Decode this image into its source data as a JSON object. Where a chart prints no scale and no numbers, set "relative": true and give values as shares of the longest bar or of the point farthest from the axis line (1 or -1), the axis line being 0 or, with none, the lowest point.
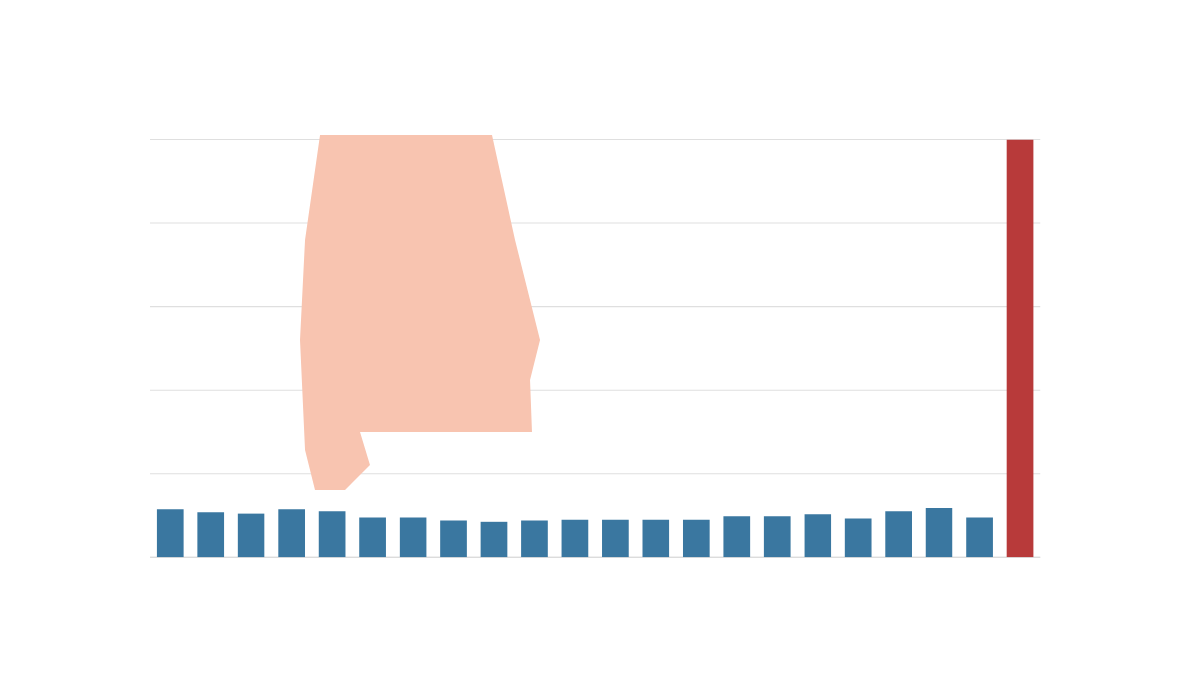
{
  "chart_data": {
    "type": "bar",
    "relative": true,
    "grid": "y",
    "categories": [
      null,
      null,
      null,
      null,
      null,
      null,
      null,
      null,
      null,
      null,
      null,
      null,
      null,
      null,
      null,
      null,
      null,
      null,
      null,
      null,
      null,
      null
    ],
    "values": [
      0.115,
      0.108,
      0.105,
      0.115,
      0.11,
      0.095,
      0.095,
      0.088,
      0.085,
      0.088,
      0.09,
      0.09,
      0.09,
      0.09,
      0.098,
      0.098,
      0.103,
      0.093,
      0.11,
      0.118,
      0.095,
      1
    ],
    "colors": [
      "#3a77a0",
      "#3a77a0",
      "#3a77a0",
      "#3a77a0",
      "#3a77a0",
      "#3a77a0",
      "#3a77a0",
      "#3a77a0",
      "#3a77a0",
      "#3a77a0",
      "#3a77a0",
      "#3a77a0",
      "#3a77a0",
      "#3a77a0",
      "#3a77a0",
      "#3a77a0",
      "#3a77a0",
      "#3a77a0",
      "#3a77a0",
      "#3a77a0",
      "#3a77a0",
      "#b83a3a"
    ]
  }
}
